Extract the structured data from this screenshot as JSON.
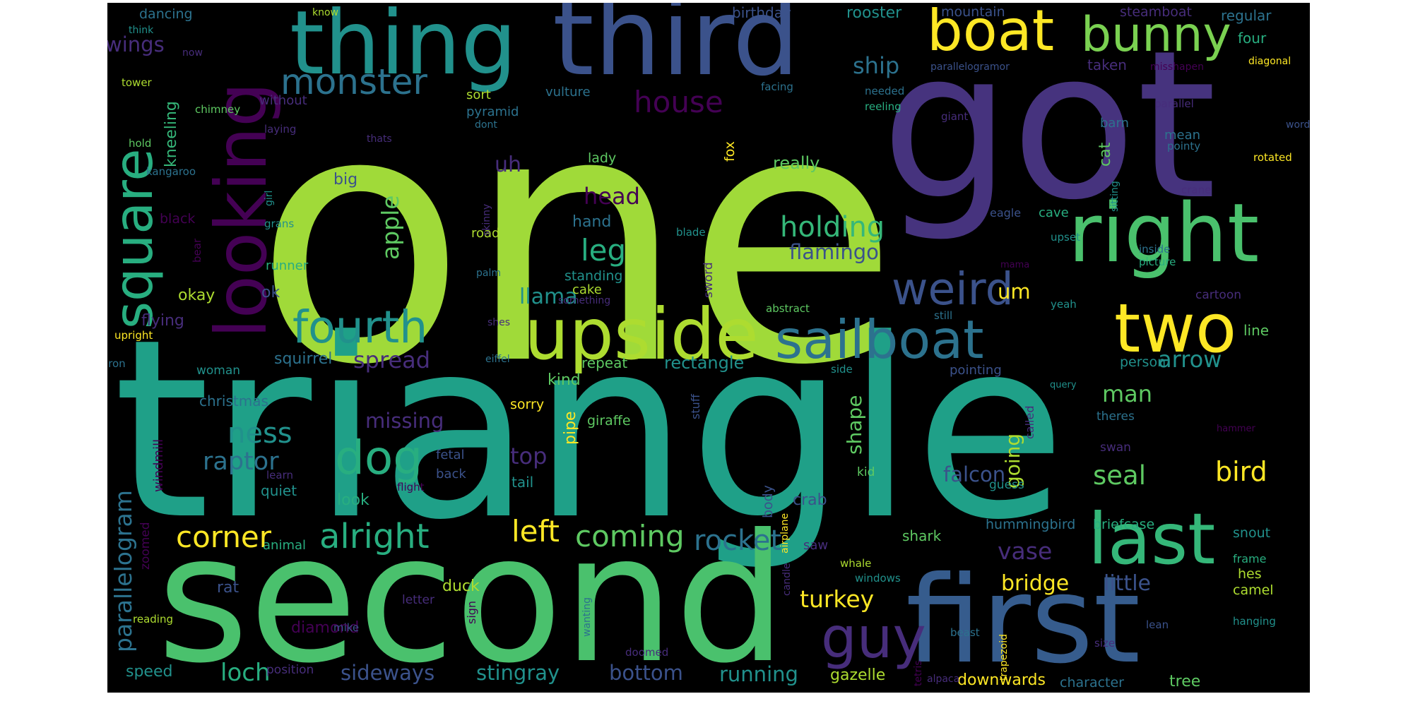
{
  "palette": {
    "background": "#000000",
    "colors": [
      "#440154",
      "#472d7b",
      "#3b528b",
      "#2c728e",
      "#21918c",
      "#28ae80",
      "#5ec962",
      "#addc30",
      "#fde725"
    ]
  },
  "words": {
    "one": "one",
    "triangle": "triangle",
    "second": "second",
    "got": "got",
    "first": "first",
    "third": "third",
    "thing": "thing",
    "looking": "looking",
    "boat": "boat",
    "bunny": "bunny",
    "right": "right",
    "upside": "upside",
    "sailboat": "sailboat",
    "two": "two",
    "last": "last",
    "square": "square",
    "fourth": "fourth",
    "weird": "weird",
    "monster": "monster",
    "dog": "dog",
    "guy": "guy",
    "house": "house",
    "ship": "ship",
    "wings": "wings",
    "kneeling": "kneeling",
    "apple": "apple",
    "holding": "holding",
    "leg": "leg",
    "head": "head",
    "flamingo": "flamingo",
    "uh": "uh",
    "um": "um",
    "llama": "llama",
    "alright": "alright",
    "left": "left",
    "coming": "coming",
    "corner": "corner",
    "rocket": "rocket",
    "raptor": "raptor",
    "ness": "ness",
    "parallelogram": "parallelogram",
    "spread": "spread",
    "arrow": "arrow",
    "seal": "seal",
    "bird": "bird",
    "falcon": "falcon",
    "going": "going",
    "shape": "shape",
    "vase": "vase",
    "bridge": "bridge",
    "little": "little",
    "turkey": "turkey",
    "loch": "loch",
    "sideways": "sideways",
    "stingray": "stingray",
    "bottom": "bottom",
    "running": "running",
    "gazelle": "gazelle",
    "downwards": "downwards",
    "tree": "tree",
    "man": "man",
    "top": "top",
    "missing": "missing",
    "rectangle": "rectangle",
    "squirrel": "squirrel",
    "look": "look",
    "kind": "kind",
    "duck": "duck",
    "diamond": "diamond",
    "rat": "rat",
    "speed": "speed",
    "okay": "okay",
    "flying": "flying",
    "ok": "ok",
    "runner": "runner",
    "black": "black",
    "big": "big",
    "christmas": "christmas",
    "windmill": "windmill",
    "zoomed": "zoomed",
    "quiet": "quiet",
    "mountain": "mountain",
    "steamboat": "steamboat",
    "regular": "regular",
    "four": "four",
    "taken": "taken",
    "barn": "barn",
    "cat": "cat",
    "mean": "mean",
    "cave": "cave",
    "eagle": "eagle",
    "really": "really",
    "fox": "fox",
    "lady": "lady",
    "hand": "hand",
    "road": "road",
    "standing": "standing",
    "cake": "cake",
    "sword": "sword",
    "pipe": "pipe",
    "repeat": "repeat",
    "sorry": "sorry",
    "giraffe": "giraffe",
    "tail": "tail",
    "back": "back",
    "fetal": "fetal",
    "body": "body",
    "crab": "crab",
    "saw": "saw",
    "shark": "shark",
    "hummingbird": "hummingbird",
    "briefcase": "briefcase",
    "snout": "snout",
    "camel": "camel",
    "hes": "hes",
    "character": "character",
    "position": "position",
    "letter": "letter",
    "sign": "sign",
    "line": "line",
    "person": "person",
    "pointing": "pointing",
    "theres": "theres",
    "swan": "swan",
    "called": "called",
    "guess": "guess",
    "kid": "kid",
    "woman": "woman",
    "dancing": "dancing",
    "know": "know",
    "think": "think",
    "now": "now",
    "tower": "tower",
    "chimney": "chimney",
    "hold": "hold",
    "kangaroo": "kangaroo",
    "girl": "girl",
    "grans": "grans",
    "bear": "bear",
    "upright": "upright",
    "iron": "iron",
    "sort": "sort",
    "vulture": "vulture",
    "pyramid": "pyramid",
    "dont": "dont",
    "without": "without",
    "laying": "laying",
    "thats": "thats",
    "birthday": "birthday",
    "rooster": "rooster",
    "parallelogramor": "parallelogramor",
    "misshapen": "misshapen",
    "diagonal": "diagonal",
    "facing": "facing",
    "needed": "needed",
    "reeling": "reeling",
    "giant": "giant",
    "parallel": "parallel",
    "word": "word",
    "pointy": "pointy",
    "rotated": "rotated",
    "sitting": "sitting",
    "crane": "crane",
    "upset": "upset",
    "inside": "inside",
    "picture": "picture",
    "mama": "mama",
    "blade": "blade",
    "skinny": "skinny",
    "palm": "palm",
    "something": "something",
    "abstract": "abstract",
    "still": "still",
    "yeah": "yeah",
    "cartoon": "cartoon",
    "shes": "shes",
    "eiffel": "eiffel",
    "side": "side",
    "stuff": "stuff",
    "query": "query",
    "hammer": "hammer",
    "candle": "candle",
    "learn": "learn",
    "flight": "flight",
    "animal": "animal",
    "airplane": "airplane",
    "whale": "whale",
    "windows": "windows",
    "frame": "frame",
    "mike": "mike",
    "wanting": "wanting",
    "reading": "reading",
    "trapezoid": "trapezoid",
    "beast": "beast",
    "lean": "lean",
    "hanging": "hanging",
    "doomed": "doomed",
    "tetris": "tetris",
    "alpaca": "alpaca",
    "size": "size"
  }
}
